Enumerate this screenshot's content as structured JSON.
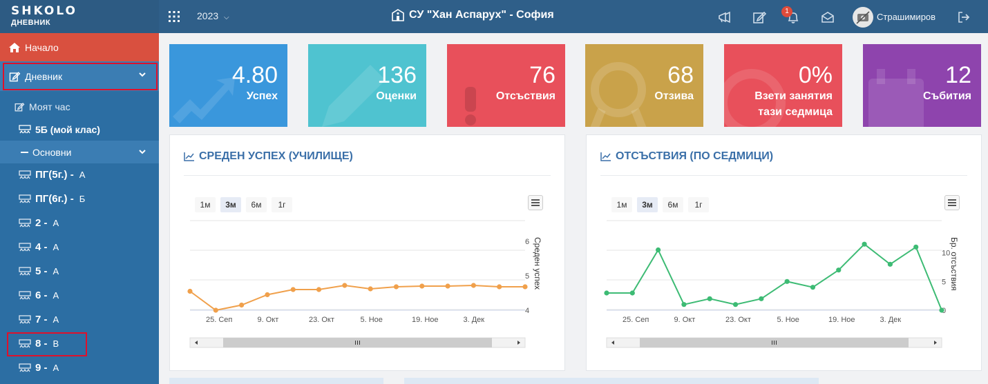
{
  "header": {
    "logo": "SHKOLO",
    "logo_sub": "ДНЕВНИК",
    "year": "2023",
    "school": "СУ \"Хан Аспарух\" - София",
    "notification_count": "1",
    "username": "Страшимиров",
    "icons": [
      "apps-grid-icon",
      "megaphone-icon",
      "edit-icon",
      "bell-icon",
      "envelope-icon",
      "avatar",
      "logout-icon"
    ]
  },
  "sidebar": {
    "home": "Начало",
    "diary": "Дневник",
    "my_hour": "Моят час",
    "my_class": "5Б (мой клас)",
    "section": "Основни",
    "classes": [
      {
        "name": "ПГ(5г.) -",
        "letter": "А"
      },
      {
        "name": "ПГ(6г.) -",
        "letter": "Б"
      },
      {
        "name": "2 -",
        "letter": "А"
      },
      {
        "name": "4 -",
        "letter": "А"
      },
      {
        "name": "5 -",
        "letter": "А"
      },
      {
        "name": "6 -",
        "letter": "А"
      },
      {
        "name": "7 -",
        "letter": "А"
      },
      {
        "name": "8 -",
        "letter": "В"
      },
      {
        "name": "9 -",
        "letter": "А"
      }
    ]
  },
  "cards": [
    {
      "value": "4.80",
      "label": "Успех",
      "color": "#3a97dc"
    },
    {
      "value": "136",
      "label": "Оценки",
      "color": "#4fc3d0"
    },
    {
      "value": "76",
      "label": "Отсъствия",
      "color": "#e8505b"
    },
    {
      "value": "68",
      "label": "Отзива",
      "color": "#c9a24a"
    },
    {
      "value": "0%",
      "label_line1": "Взети занятия",
      "label_line2": "тази седмица",
      "color": "#e8505b"
    },
    {
      "value": "12",
      "label": "Събития",
      "color": "#8e44ad"
    }
  ],
  "panels": {
    "left_title": "СРЕДЕН УСПЕХ (УЧИЛИЩЕ)",
    "right_title": "ОТСЪСТВИЯ (ПО СЕДМИЦИ)",
    "zoom": [
      "1м",
      "3м",
      "6м",
      "1г"
    ],
    "zoom_selected": "3м"
  },
  "chart_data": [
    {
      "type": "line",
      "ylabel": "Среден успех",
      "color": "#f0a04b",
      "x_ticks": [
        "25. Сеп",
        "9. Окт",
        "23. Окт",
        "5. Ное",
        "19. Ное",
        "3. Дек"
      ],
      "y_ticks": [
        4,
        5,
        6
      ],
      "ylim": [
        4,
        6
      ],
      "values": [
        4.55,
        4.0,
        4.15,
        4.45,
        4.6,
        4.6,
        4.72,
        4.62,
        4.68,
        4.7,
        4.7,
        4.72,
        4.68,
        4.68
      ],
      "grid": true
    },
    {
      "type": "line",
      "ylabel": "Бр. отсъствия",
      "color": "#3dbb74",
      "x_ticks": [
        "25. Сеп",
        "9. Окт",
        "23. Окт",
        "5. Ное",
        "19. Ное",
        "3. Дек"
      ],
      "y_ticks": [
        0,
        5,
        10
      ],
      "ylim": [
        0,
        12
      ],
      "values": [
        3,
        3,
        10.5,
        1,
        2,
        1,
        2,
        5,
        4,
        7,
        11.5,
        8,
        11,
        0
      ],
      "grid": true
    }
  ]
}
